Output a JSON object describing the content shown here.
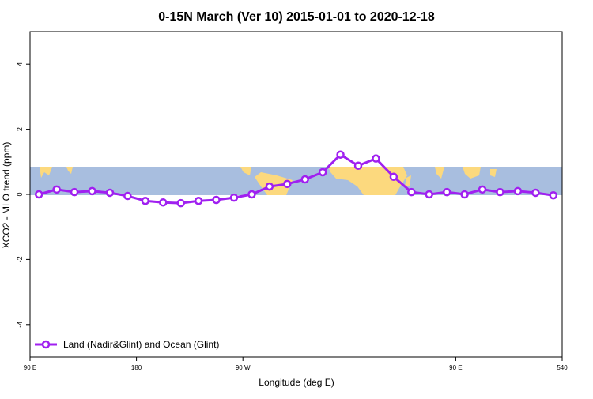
{
  "chart_data": {
    "type": "line",
    "title": "0-15N March (Ver 10)   2015-01-01 to 2020-12-18",
    "x_label": "Longitude (deg E)",
    "y_label": "XCO2 - MLO trend (ppm)",
    "legend_position": "bottom-left",
    "x": [
      97.5,
      112.5,
      127.5,
      142.5,
      157.5,
      172.5,
      187.5,
      202.5,
      217.5,
      232.5,
      247.5,
      262.5,
      277.5,
      292.5,
      307.5,
      322.5,
      337.5,
      352.5,
      367.5,
      382.5,
      397.5,
      412.5,
      427.5,
      442.5,
      457.5,
      472.5,
      487.5,
      502.5,
      517.5,
      532.5
    ],
    "series": [
      {
        "name": "Land (Nadir&Glint) and Ocean (Glint)",
        "color": "#a020f0",
        "values": [
          0.0,
          0.15,
          0.07,
          0.1,
          0.05,
          -0.05,
          -0.2,
          -0.25,
          -0.27,
          -0.2,
          -0.17,
          -0.1,
          0.0,
          0.24,
          0.32,
          0.46,
          0.68,
          1.22,
          0.88,
          1.1,
          0.54,
          0.07,
          0.0,
          0.07,
          0.0,
          0.15,
          0.07,
          0.1,
          0.05,
          -0.03
        ]
      }
    ],
    "xlim": [
      90,
      540
    ],
    "xticks": [
      {
        "value": 90,
        "label": "90 E"
      },
      180,
      {
        "value": 270,
        "label": "90 W"
      },
      {
        "value": 450,
        "label": "90 E"
      },
      540
    ],
    "ylim": [
      -5,
      5
    ],
    "yticks": [
      -4,
      -2,
      0,
      2,
      4
    ]
  }
}
